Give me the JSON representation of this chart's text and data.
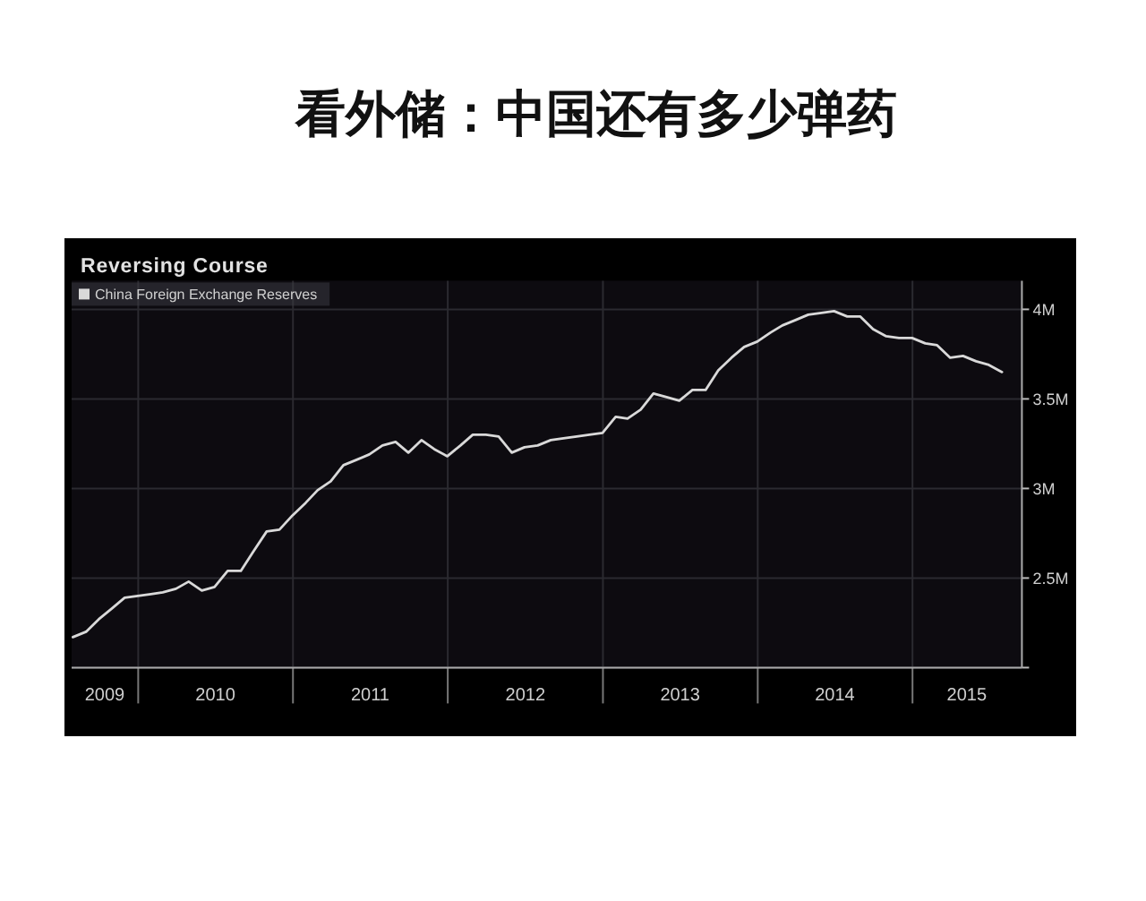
{
  "chart_data": {
    "type": "line",
    "title": "看外储：中国还有多少弹药",
    "subtitle": "Reversing Course",
    "x": [
      "2009-07-31",
      "2009-08-31",
      "2009-09-30",
      "2009-10-31",
      "2009-11-30",
      "2009-12-31",
      "2010-01-31",
      "2010-02-28",
      "2010-03-31",
      "2010-04-30",
      "2010-05-31",
      "2010-06-30",
      "2010-07-31",
      "2010-08-31",
      "2010-09-30",
      "2010-10-31",
      "2010-11-30",
      "2010-12-31",
      "2011-01-31",
      "2011-02-28",
      "2011-03-31",
      "2011-04-30",
      "2011-05-31",
      "2011-06-30",
      "2011-07-31",
      "2011-08-31",
      "2011-09-30",
      "2011-10-31",
      "2011-11-30",
      "2011-12-31",
      "2012-01-31",
      "2012-02-29",
      "2012-03-31",
      "2012-04-30",
      "2012-05-31",
      "2012-06-30",
      "2012-07-31",
      "2012-08-31",
      "2012-09-30",
      "2012-10-31",
      "2012-11-30",
      "2012-12-31",
      "2013-01-31",
      "2013-02-28",
      "2013-03-31",
      "2013-04-30",
      "2013-05-31",
      "2013-06-30",
      "2013-07-31",
      "2013-08-31",
      "2013-09-30",
      "2013-10-31",
      "2013-11-30",
      "2013-12-31",
      "2014-01-31",
      "2014-02-28",
      "2014-03-31",
      "2014-04-30",
      "2014-05-31",
      "2014-06-30",
      "2014-07-31",
      "2014-08-31",
      "2014-09-30",
      "2014-10-31",
      "2014-11-30",
      "2014-12-31",
      "2015-01-31",
      "2015-02-28",
      "2015-03-31",
      "2015-04-30",
      "2015-05-31",
      "2015-06-30",
      "2015-07-31"
    ],
    "series": [
      {
        "name": "China Foreign Exchange Reserves",
        "color": "#d9d9d9",
        "values": [
          2.17,
          2.2,
          2.27,
          2.33,
          2.39,
          2.4,
          2.41,
          2.42,
          2.44,
          2.48,
          2.43,
          2.45,
          2.54,
          2.54,
          2.65,
          2.76,
          2.77,
          2.85,
          2.92,
          2.99,
          3.04,
          3.13,
          3.16,
          3.19,
          3.24,
          3.26,
          3.2,
          3.27,
          3.22,
          3.18,
          3.24,
          3.3,
          3.3,
          3.29,
          3.2,
          3.23,
          3.24,
          3.27,
          3.28,
          3.29,
          3.3,
          3.31,
          3.4,
          3.39,
          3.44,
          3.53,
          3.51,
          3.49,
          3.55,
          3.55,
          3.66,
          3.73,
          3.79,
          3.82,
          3.87,
          3.91,
          3.94,
          3.97,
          3.98,
          3.99,
          3.96,
          3.96,
          3.89,
          3.85,
          3.84,
          3.84,
          3.81,
          3.8,
          3.73,
          3.74,
          3.71,
          3.69,
          3.65
        ]
      }
    ],
    "xlim": [
      "2009-07-28",
      "2015-09-16"
    ],
    "xticks": [
      {
        "value": "2009-10-14",
        "label": "2009"
      },
      {
        "value": "2010-01-01",
        "label": null
      },
      {
        "value": "2010-07-02",
        "label": "2010"
      },
      {
        "value": "2011-01-01",
        "label": null
      },
      {
        "value": "2011-07-02",
        "label": "2011"
      },
      {
        "value": "2012-01-01",
        "label": null
      },
      {
        "value": "2012-07-02",
        "label": "2012"
      },
      {
        "value": "2013-01-01",
        "label": null
      },
      {
        "value": "2013-07-02",
        "label": "2013"
      },
      {
        "value": "2014-01-01",
        "label": null
      },
      {
        "value": "2014-07-02",
        "label": "2014"
      },
      {
        "value": "2015-01-01",
        "label": null
      },
      {
        "value": "2015-05-09",
        "label": "2015"
      }
    ],
    "ylim": [
      2,
      4.16
    ],
    "yticks": [
      {
        "value": 2,
        "label": null
      },
      {
        "value": 2.5,
        "label": "2.5M"
      },
      {
        "value": 3,
        "label": "3M"
      },
      {
        "value": 3.5,
        "label": "3.5M"
      },
      {
        "value": 4,
        "label": "4M"
      }
    ],
    "grid": true,
    "legend": "top left"
  }
}
